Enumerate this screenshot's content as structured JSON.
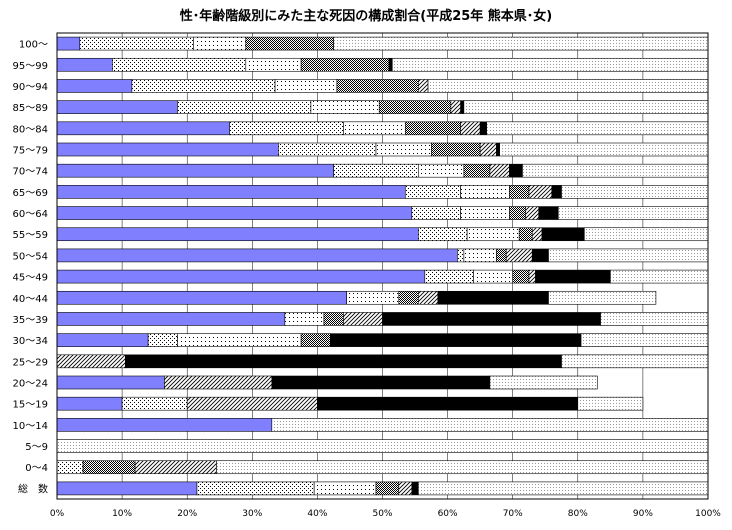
{
  "chart_data": {
    "type": "bar",
    "orientation": "horizontal",
    "stacked": true,
    "title": "性･年齢階級別にみた主な死因の構成割合(平成25年 熊本県･女)",
    "xlim": [
      0,
      100
    ],
    "x_ticks": [
      "0%",
      "10%",
      "20%",
      "30%",
      "40%",
      "50%",
      "60%",
      "70%",
      "80%",
      "90%",
      "100%"
    ],
    "grid": "vertical",
    "legend": "none",
    "categories": [
      "100～",
      "95～99",
      "90～94",
      "85～89",
      "80～84",
      "75～79",
      "70～74",
      "65～69",
      "60～64",
      "55～59",
      "50～54",
      "45～49",
      "40～44",
      "35～39",
      "30～34",
      "25～29",
      "20～24",
      "15～19",
      "10～14",
      "5～9",
      "0～4",
      "総　数"
    ],
    "series": [
      {
        "values": [
          3.5,
          8.5,
          11.5,
          18.5,
          26.5,
          34,
          42.5,
          53.5,
          54.5,
          55.5,
          61.5,
          56.5,
          44.5,
          35,
          14,
          0,
          16.5,
          10,
          33,
          0,
          0,
          21.5
        ],
        "color": "#8080ff",
        "fill": "solid"
      },
      {
        "values": [
          17.5,
          20.5,
          22,
          20.5,
          17.5,
          15,
          13,
          8.5,
          7.5,
          7.5,
          1,
          7.5,
          0,
          0,
          4.5,
          0,
          0,
          10,
          0,
          0,
          4,
          18
        ]
      },
      {
        "values": [
          8,
          8.5,
          9.5,
          10.5,
          9.5,
          8.5,
          7,
          7.5,
          7.5,
          8,
          5,
          6,
          8,
          6,
          19,
          0,
          0,
          0,
          0,
          0,
          0,
          9.5
        ]
      },
      {
        "values": [
          13.5,
          13.5,
          12.5,
          11,
          8.5,
          7.5,
          4,
          3,
          2.5,
          2,
          1.5,
          2.5,
          3,
          3,
          4.5,
          0,
          0,
          0,
          0,
          0,
          8,
          3.5
        ]
      },
      {
        "values": [
          0,
          0,
          1.5,
          1.5,
          3,
          2.5,
          3,
          3.5,
          2,
          1.5,
          4,
          1,
          3,
          6,
          0,
          10.5,
          16.5,
          20,
          0,
          0,
          12.5,
          2
        ]
      },
      {
        "values": [
          0,
          0.5,
          0,
          0.5,
          1,
          0.5,
          2,
          1.5,
          3,
          6.5,
          2.5,
          11.5,
          17,
          33.5,
          38.5,
          67,
          33.5,
          40,
          0,
          0,
          0,
          1
        ]
      },
      {
        "values": [
          57.5,
          48.5,
          43,
          37.5,
          34,
          32,
          28.5,
          22.5,
          23,
          19,
          24.5,
          15,
          16.5,
          16.5,
          19.5,
          22.5,
          16.5,
          10,
          67,
          100,
          75.5,
          44.5
        ]
      }
    ]
  }
}
